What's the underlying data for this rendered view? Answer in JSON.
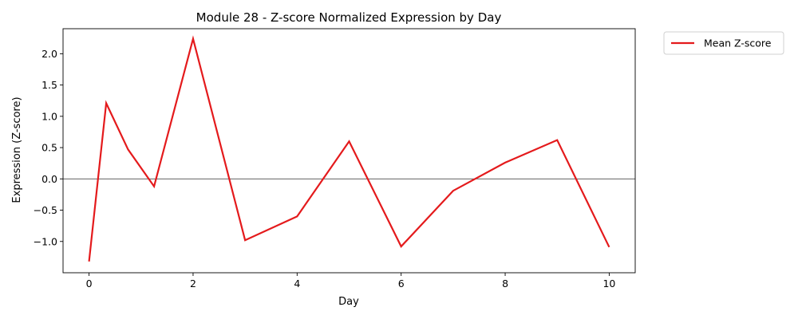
{
  "chart_data": {
    "type": "line",
    "title": "Module 28 - Z-score Normalized Expression by Day",
    "xlabel": "Day",
    "ylabel": "Expression (Z-score)",
    "xlim": [
      -0.5,
      10.5
    ],
    "ylim": [
      -1.5,
      2.4
    ],
    "xticks": [
      0,
      2,
      4,
      6,
      8,
      10
    ],
    "xtick_labels": [
      "0",
      "2",
      "4",
      "6",
      "8",
      "10"
    ],
    "yticks": [
      -1.0,
      -0.5,
      0.0,
      0.5,
      1.0,
      1.5,
      2.0
    ],
    "ytick_labels": [
      "−1.0",
      "−0.5",
      "0.0",
      "0.5",
      "1.0",
      "1.5",
      "2.0"
    ],
    "grid": false,
    "reference_line": 0,
    "legend_position": "outside-top-right",
    "series": [
      {
        "name": "Mean Z-score",
        "color": "#e41a1c",
        "x": [
          0,
          0.33,
          0.75,
          1.25,
          2,
          3,
          4,
          5,
          6,
          7,
          8,
          9,
          10
        ],
        "y": [
          -1.32,
          1.21,
          0.47,
          -0.12,
          2.24,
          -0.98,
          -0.6,
          0.6,
          -1.08,
          -0.19,
          0.26,
          0.62,
          -1.09
        ]
      }
    ]
  }
}
